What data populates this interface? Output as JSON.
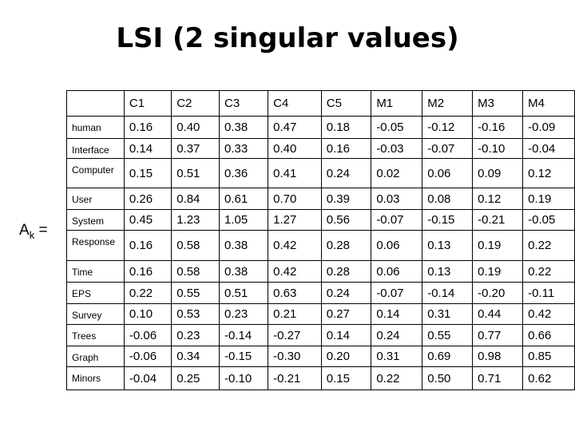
{
  "title": "LSI (2 singular values)",
  "matrix_label": {
    "base": "A",
    "sub": "k",
    "eq": "="
  },
  "table": {
    "header": [
      "C1",
      "C2",
      "C3",
      "C4",
      "C5",
      "M1",
      "M2",
      "M3",
      "M4"
    ],
    "rows": [
      [
        "human",
        "0.16",
        "0.40",
        "0.38",
        "0.47",
        "0.18",
        "-0.05",
        "-0.12",
        "-0.16",
        "-0.09"
      ],
      [
        "Interface",
        "0.14",
        "0.37",
        "0.33",
        "0.40",
        "0.16",
        "-0.03",
        "-0.07",
        "-0.10",
        "-0.04"
      ],
      [
        "Computer",
        "0.15",
        "0.51",
        "0.36",
        "0.41",
        "0.24",
        "0.02",
        "0.06",
        "0.09",
        "0.12"
      ],
      [
        "User",
        "0.26",
        "0.84",
        "0.61",
        "0.70",
        "0.39",
        "0.03",
        "0.08",
        "0.12",
        "0.19"
      ],
      [
        "System",
        "0.45",
        "1.23",
        "1.05",
        "1.27",
        "0.56",
        "-0.07",
        "-0.15",
        "-0.21",
        "-0.05"
      ],
      [
        "Response",
        "0.16",
        "0.58",
        "0.38",
        "0.42",
        "0.28",
        "0.06",
        "0.13",
        "0.19",
        "0.22"
      ],
      [
        "Time",
        "0.16",
        "0.58",
        "0.38",
        "0.42",
        "0.28",
        "0.06",
        "0.13",
        "0.19",
        "0.22"
      ],
      [
        "EPS",
        "0.22",
        "0.55",
        "0.51",
        "0.63",
        "0.24",
        "-0.07",
        "-0.14",
        "-0.20",
        "-0.11"
      ],
      [
        "Survey",
        "0.10",
        "0.53",
        "0.23",
        "0.21",
        "0.27",
        "0.14",
        "0.31",
        "0.44",
        "0.42"
      ],
      [
        "Trees",
        "-0.06",
        "0.23",
        "-0.14",
        "-0.27",
        "0.14",
        "0.24",
        "0.55",
        "0.77",
        "0.66"
      ],
      [
        "Graph",
        "-0.06",
        "0.34",
        "-0.15",
        "-0.30",
        "0.20",
        "0.31",
        "0.69",
        "0.98",
        "0.85"
      ],
      [
        "Minors",
        "-0.04",
        "0.25",
        "-0.10",
        "-0.21",
        "0.15",
        "0.22",
        "0.50",
        "0.71",
        "0.62"
      ]
    ]
  }
}
